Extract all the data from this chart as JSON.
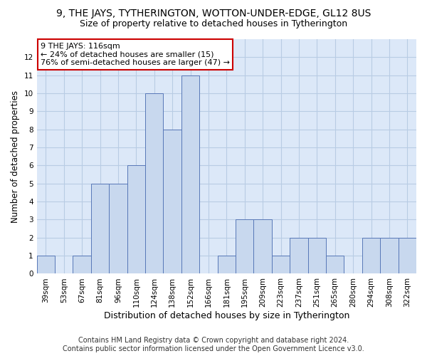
{
  "title": "9, THE JAYS, TYTHERINGTON, WOTTON-UNDER-EDGE, GL12 8US",
  "subtitle": "Size of property relative to detached houses in Tytherington",
  "xlabel": "Distribution of detached houses by size in Tytherington",
  "ylabel": "Number of detached properties",
  "categories": [
    "39sqm",
    "53sqm",
    "67sqm",
    "81sqm",
    "96sqm",
    "110sqm",
    "124sqm",
    "138sqm",
    "152sqm",
    "166sqm",
    "181sqm",
    "195sqm",
    "209sqm",
    "223sqm",
    "237sqm",
    "251sqm",
    "265sqm",
    "280sqm",
    "294sqm",
    "308sqm",
    "322sqm"
  ],
  "values": [
    1,
    0,
    1,
    5,
    5,
    6,
    10,
    8,
    11,
    0,
    1,
    3,
    3,
    1,
    2,
    2,
    1,
    0,
    2,
    2,
    2
  ],
  "bar_color": "#c8d8ee",
  "bar_edge_color": "#5878b8",
  "annotation_text": "9 THE JAYS: 116sqm\n← 24% of detached houses are smaller (15)\n76% of semi-detached houses are larger (47) →",
  "annotation_box_facecolor": "#ffffff",
  "annotation_box_edgecolor": "#cc0000",
  "footer_line1": "Contains HM Land Registry data © Crown copyright and database right 2024.",
  "footer_line2": "Contains public sector information licensed under the Open Government Licence v3.0.",
  "ylim_max": 13,
  "bg_color": "#ffffff",
  "plot_bg_color": "#dce8f8",
  "grid_color": "#b8cce4",
  "title_fontsize": 10,
  "subtitle_fontsize": 9,
  "ylabel_fontsize": 8.5,
  "xlabel_fontsize": 9,
  "tick_fontsize": 7.5,
  "ann_fontsize": 8,
  "footer_fontsize": 7
}
